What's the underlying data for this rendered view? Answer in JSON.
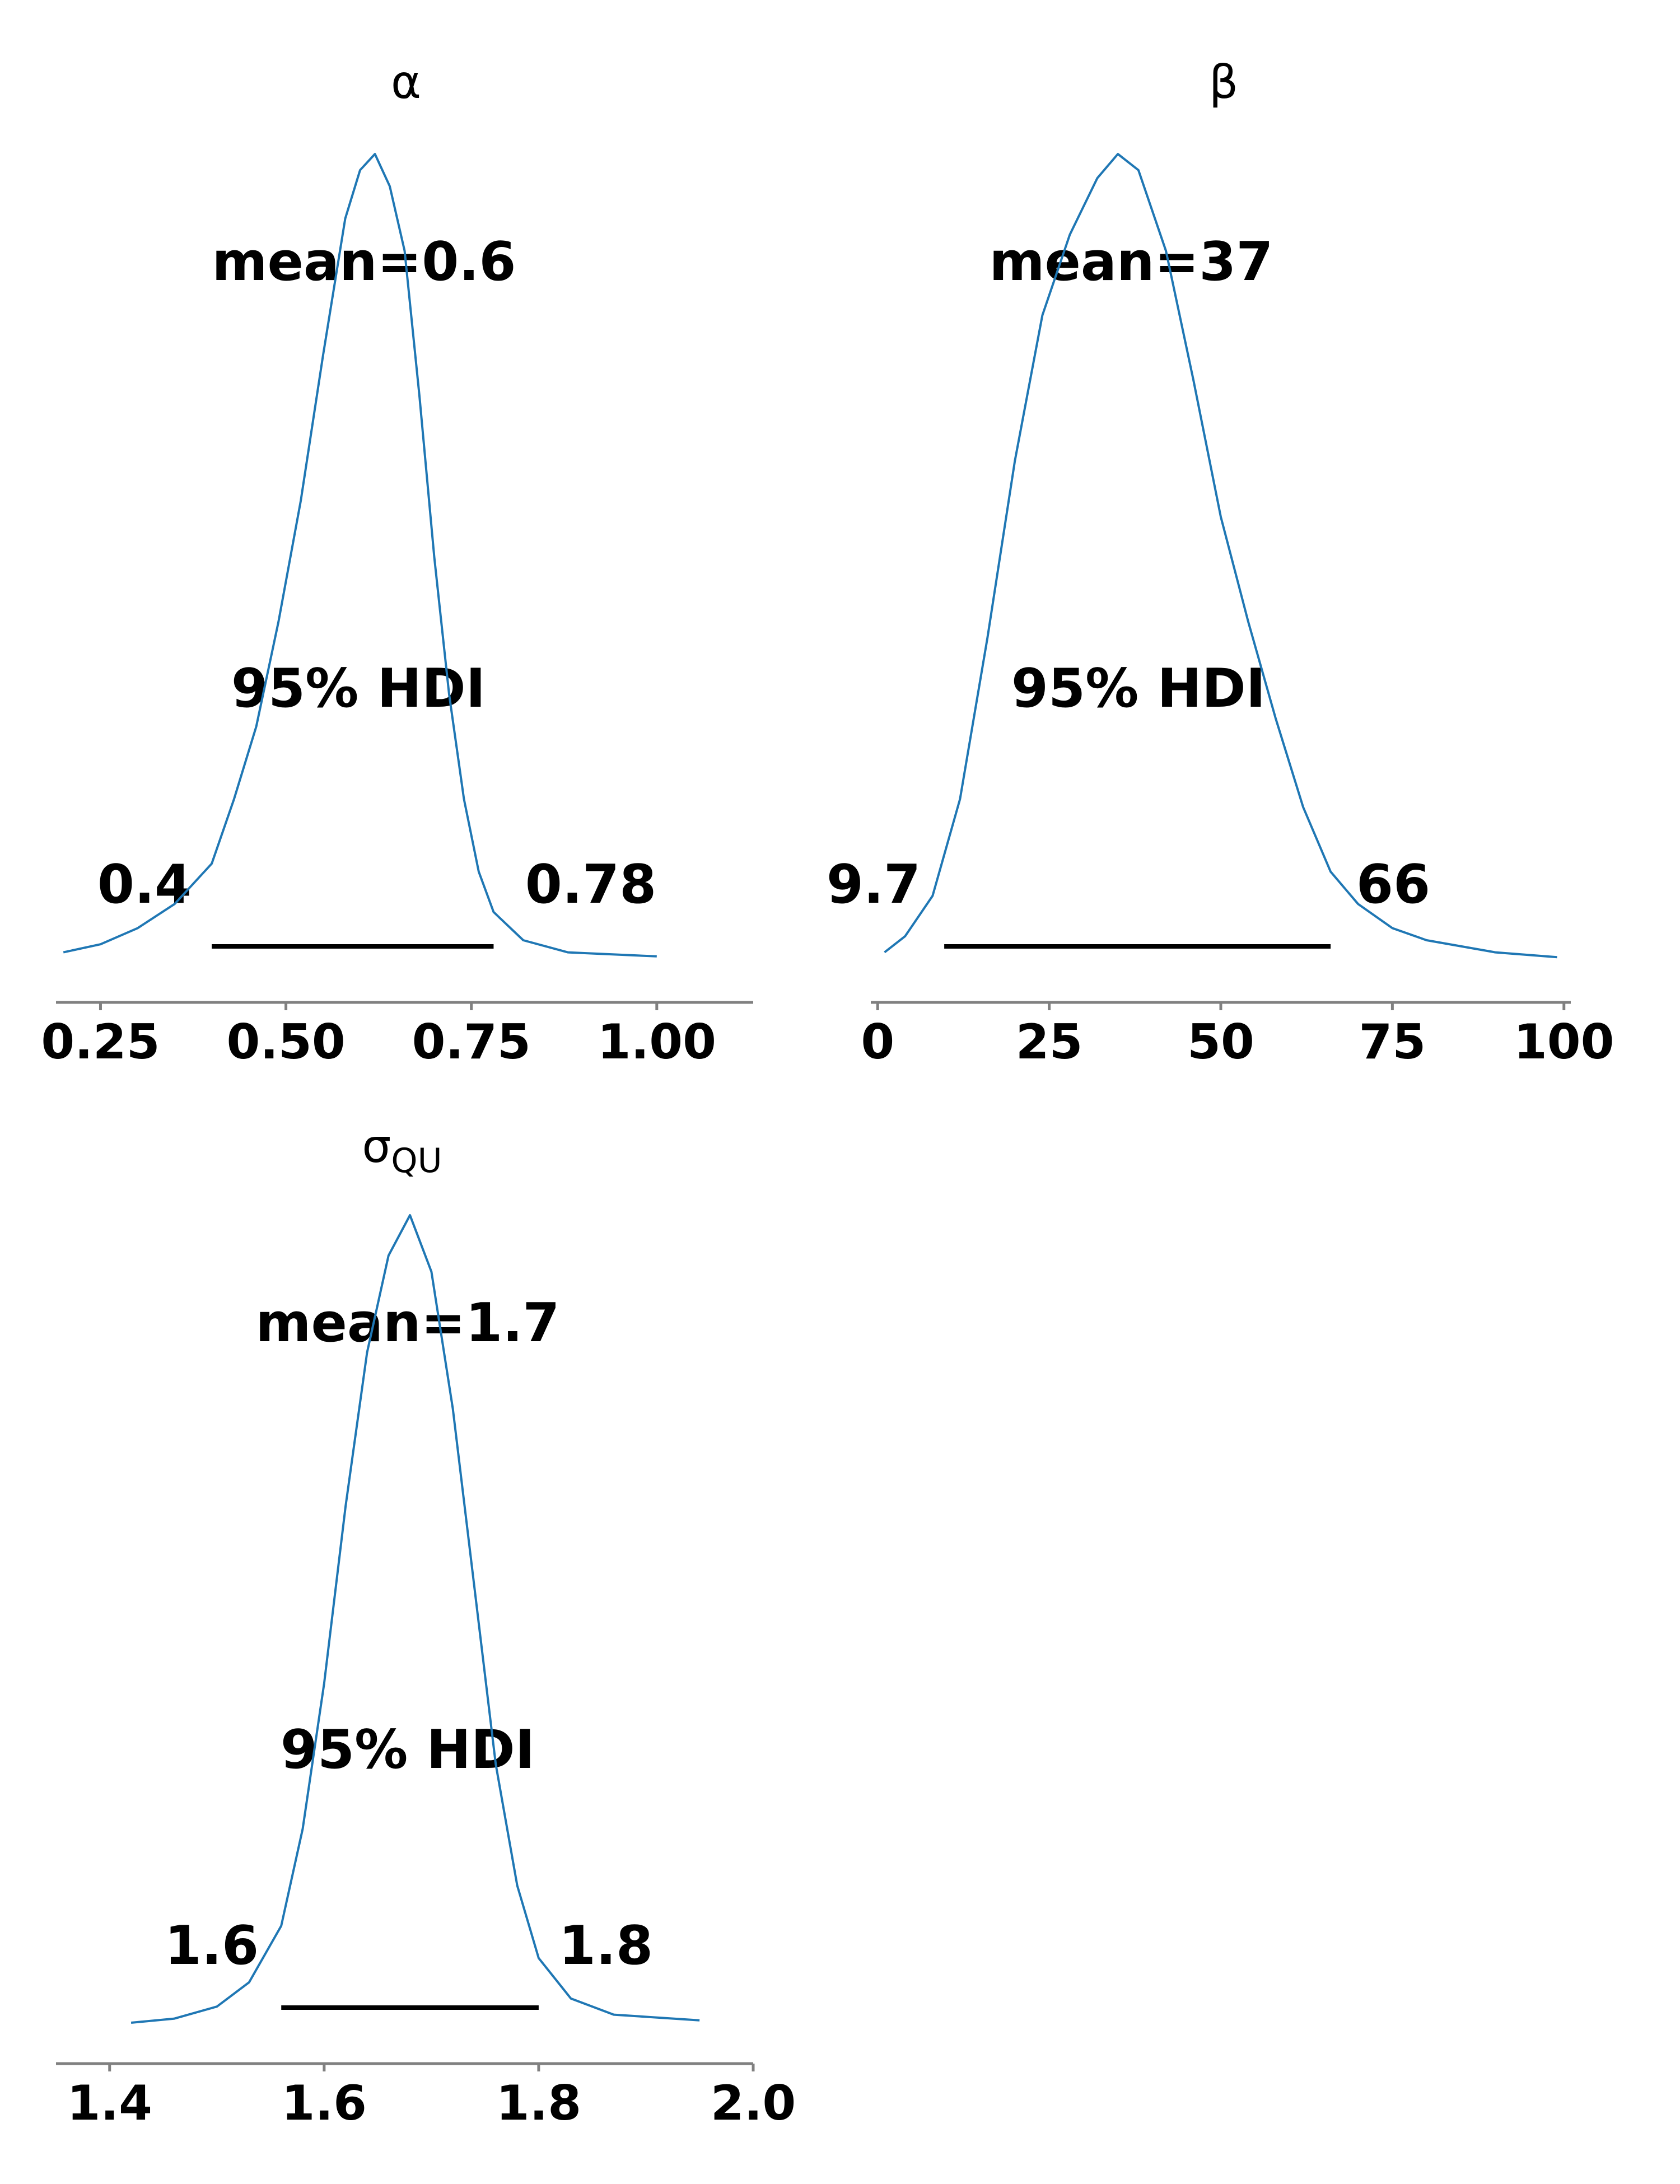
{
  "chart_data": [
    {
      "type": "area",
      "title": "α",
      "title_sub": "",
      "mean_label": "mean=0.6",
      "hdi_label": "95% HDI",
      "hdi_low_label": "0.4",
      "hdi_high_label": "0.78",
      "hdi": [
        0.4,
        0.78
      ],
      "xlim": [
        0.19,
        1.13
      ],
      "xticks": [
        0.25,
        0.5,
        0.75,
        1.0
      ],
      "xtick_labels": [
        "0.25",
        "0.50",
        "0.75",
        "1.00"
      ],
      "density": [
        [
          0.2,
          0.01
        ],
        [
          0.25,
          0.02
        ],
        [
          0.3,
          0.04
        ],
        [
          0.35,
          0.07
        ],
        [
          0.4,
          0.12
        ],
        [
          0.43,
          0.2
        ],
        [
          0.46,
          0.29
        ],
        [
          0.49,
          0.42
        ],
        [
          0.52,
          0.57
        ],
        [
          0.55,
          0.75
        ],
        [
          0.58,
          0.92
        ],
        [
          0.6,
          0.98
        ],
        [
          0.62,
          1.0
        ],
        [
          0.64,
          0.96
        ],
        [
          0.66,
          0.88
        ],
        [
          0.68,
          0.7
        ],
        [
          0.7,
          0.5
        ],
        [
          0.72,
          0.33
        ],
        [
          0.74,
          0.2
        ],
        [
          0.76,
          0.11
        ],
        [
          0.78,
          0.06
        ],
        [
          0.82,
          0.025
        ],
        [
          0.88,
          0.01
        ],
        [
          1.0,
          0.005
        ]
      ],
      "color": "#1f77b4"
    },
    {
      "type": "area",
      "title": "β",
      "title_sub": "",
      "mean_label": "mean=37",
      "hdi_label": "95% HDI",
      "hdi_low_label": "9.7",
      "hdi_high_label": "66",
      "hdi": [
        9.7,
        66
      ],
      "xlim": [
        -1,
        101
      ],
      "xticks": [
        0,
        25,
        50,
        75,
        100
      ],
      "xtick_labels": [
        "0",
        "25",
        "50",
        "75",
        "100"
      ],
      "density": [
        [
          1,
          0.01
        ],
        [
          4,
          0.03
        ],
        [
          8,
          0.08
        ],
        [
          12,
          0.2
        ],
        [
          16,
          0.4
        ],
        [
          20,
          0.62
        ],
        [
          24,
          0.8
        ],
        [
          28,
          0.9
        ],
        [
          32,
          0.97
        ],
        [
          35,
          1.0
        ],
        [
          38,
          0.98
        ],
        [
          42,
          0.88
        ],
        [
          46,
          0.72
        ],
        [
          50,
          0.55
        ],
        [
          54,
          0.42
        ],
        [
          58,
          0.3
        ],
        [
          62,
          0.19
        ],
        [
          66,
          0.11
        ],
        [
          70,
          0.07
        ],
        [
          75,
          0.04
        ],
        [
          80,
          0.025
        ],
        [
          90,
          0.01
        ],
        [
          99,
          0.004
        ]
      ],
      "color": "#1f77b4"
    },
    {
      "type": "area",
      "title": "σ",
      "title_sub": "QU",
      "mean_label": "mean=1.7",
      "hdi_label": "95% HDI",
      "hdi_low_label": "1.6",
      "hdi_high_label": "1.8",
      "hdi": [
        1.56,
        1.8
      ],
      "xlim": [
        1.35,
        2.0
      ],
      "xticks": [
        1.4,
        1.6,
        1.8,
        2.0
      ],
      "xtick_labels": [
        "1.4",
        "1.6",
        "1.8",
        "2.0"
      ],
      "density": [
        [
          1.42,
          0.0
        ],
        [
          1.46,
          0.005
        ],
        [
          1.5,
          0.02
        ],
        [
          1.53,
          0.05
        ],
        [
          1.56,
          0.12
        ],
        [
          1.58,
          0.24
        ],
        [
          1.6,
          0.42
        ],
        [
          1.62,
          0.64
        ],
        [
          1.64,
          0.83
        ],
        [
          1.66,
          0.95
        ],
        [
          1.68,
          1.0
        ],
        [
          1.7,
          0.93
        ],
        [
          1.72,
          0.76
        ],
        [
          1.74,
          0.54
        ],
        [
          1.76,
          0.32
        ],
        [
          1.78,
          0.17
        ],
        [
          1.8,
          0.08
        ],
        [
          1.83,
          0.03
        ],
        [
          1.87,
          0.01
        ],
        [
          1.95,
          0.003
        ]
      ],
      "color": "#1f77b4"
    }
  ]
}
